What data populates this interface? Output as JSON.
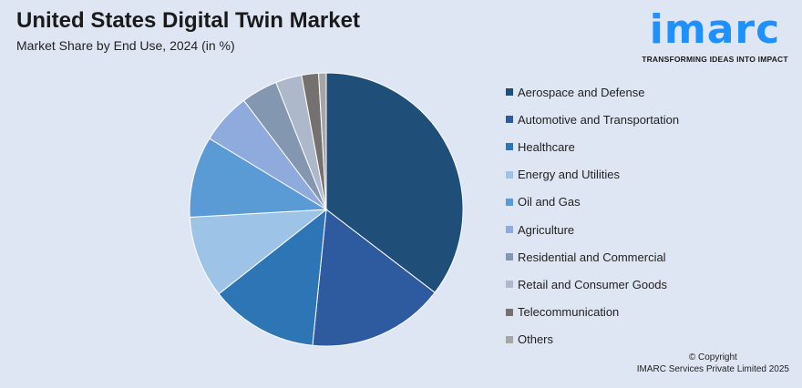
{
  "header": {
    "title": "United States Digital Twin Market",
    "subtitle": "Market Share by End Use, 2024 (in %)"
  },
  "logo": {
    "word": "imarc",
    "tagline": "TRANSFORMING IDEAS INTO IMPACT",
    "color": "#1e90ff"
  },
  "chart_data": {
    "type": "pie",
    "unit": "%",
    "start_angle_deg": 0,
    "direction": "clockwise",
    "legend_position": "right",
    "categories": [
      "Aerospace and Defense",
      "Automotive and Transportation",
      "Healthcare",
      "Energy and Utilities",
      "Oil and Gas",
      "Agriculture",
      "Residential and Commercial",
      "Retail and Consumer Goods",
      "Telecommunication",
      "Others"
    ],
    "values": [
      35.4,
      16.2,
      12.8,
      9.7,
      9.6,
      6.0,
      4.3,
      3.1,
      2.0,
      0.9
    ],
    "colors": [
      "#1f4e79",
      "#2e5aa0",
      "#2e75b6",
      "#9dc3e6",
      "#5b9bd5",
      "#8faadc",
      "#8497b0",
      "#adb9ca",
      "#767171",
      "#a6a6a6"
    ]
  },
  "footer": {
    "copyright_line1": "© Copyright",
    "copyright_line2": "IMARC Services Private Limited 2025"
  }
}
